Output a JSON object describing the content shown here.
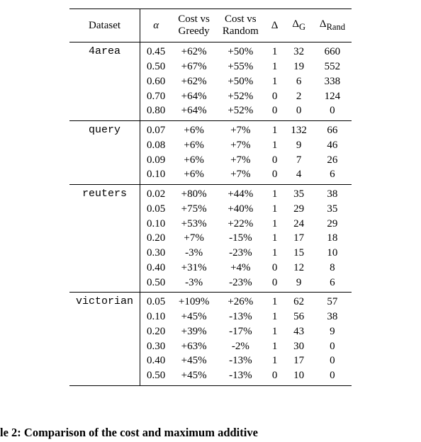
{
  "table": {
    "background_color": "#ffffff",
    "text_color": "#000000",
    "border_color": "#000000",
    "font_family_body": "Times New Roman",
    "font_family_dataset": "Courier New",
    "font_size_body": 15,
    "headers": {
      "dataset": "Dataset",
      "alpha": "α",
      "cost_greedy_line1": "Cost vs",
      "cost_greedy_line2": "Greedy",
      "cost_random_line1": "Cost vs",
      "cost_random_line2": "Random",
      "delta": "Δ",
      "delta_g": "Δ",
      "delta_g_sub": "G",
      "delta_rand": "Δ",
      "delta_rand_sub": "Rand"
    },
    "groups": [
      {
        "name": "4area",
        "rows": [
          {
            "alpha": "0.45",
            "cvg": "+62%",
            "cvr": "+50%",
            "d": "1",
            "dg": "32",
            "dr": "660"
          },
          {
            "alpha": "0.50",
            "cvg": "+67%",
            "cvr": "+55%",
            "d": "1",
            "dg": "19",
            "dr": "552"
          },
          {
            "alpha": "0.60",
            "cvg": "+62%",
            "cvr": "+50%",
            "d": "1",
            "dg": "6",
            "dr": "338"
          },
          {
            "alpha": "0.70",
            "cvg": "+64%",
            "cvr": "+52%",
            "d": "0",
            "dg": "2",
            "dr": "124"
          },
          {
            "alpha": "0.80",
            "cvg": "+64%",
            "cvr": "+52%",
            "d": "0",
            "dg": "0",
            "dr": "0"
          }
        ]
      },
      {
        "name": "query",
        "rows": [
          {
            "alpha": "0.07",
            "cvg": "+6%",
            "cvr": "+7%",
            "d": "1",
            "dg": "132",
            "dr": "66"
          },
          {
            "alpha": "0.08",
            "cvg": "+6%",
            "cvr": "+7%",
            "d": "1",
            "dg": "9",
            "dr": "46"
          },
          {
            "alpha": "0.09",
            "cvg": "+6%",
            "cvr": "+7%",
            "d": "0",
            "dg": "7",
            "dr": "26"
          },
          {
            "alpha": "0.10",
            "cvg": "+6%",
            "cvr": "+7%",
            "d": "0",
            "dg": "4",
            "dr": "6"
          }
        ]
      },
      {
        "name": "reuters",
        "rows": [
          {
            "alpha": "0.02",
            "cvg": "+80%",
            "cvr": "+44%",
            "d": "1",
            "dg": "35",
            "dr": "38"
          },
          {
            "alpha": "0.05",
            "cvg": "+75%",
            "cvr": "+40%",
            "d": "1",
            "dg": "29",
            "dr": "35"
          },
          {
            "alpha": "0.10",
            "cvg": "+53%",
            "cvr": "+22%",
            "d": "1",
            "dg": "24",
            "dr": "29"
          },
          {
            "alpha": "0.20",
            "cvg": "+7%",
            "cvr": "-15%",
            "d": "1",
            "dg": "17",
            "dr": "18"
          },
          {
            "alpha": "0.30",
            "cvg": "-3%",
            "cvr": "-23%",
            "d": "1",
            "dg": "15",
            "dr": "10"
          },
          {
            "alpha": "0.40",
            "cvg": "+31%",
            "cvr": "+4%",
            "d": "0",
            "dg": "12",
            "dr": "8"
          },
          {
            "alpha": "0.50",
            "cvg": "-3%",
            "cvr": "-23%",
            "d": "0",
            "dg": "9",
            "dr": "6"
          }
        ]
      },
      {
        "name": "victorian",
        "rows": [
          {
            "alpha": "0.05",
            "cvg": "+109%",
            "cvr": "+26%",
            "d": "1",
            "dg": "62",
            "dr": "57"
          },
          {
            "alpha": "0.10",
            "cvg": "+45%",
            "cvr": "-13%",
            "d": "1",
            "dg": "56",
            "dr": "38"
          },
          {
            "alpha": "0.20",
            "cvg": "+39%",
            "cvr": "-17%",
            "d": "1",
            "dg": "43",
            "dr": "9"
          },
          {
            "alpha": "0.30",
            "cvg": "+63%",
            "cvr": "-2%",
            "d": "1",
            "dg": "30",
            "dr": "0"
          },
          {
            "alpha": "0.40",
            "cvg": "+45%",
            "cvr": "-13%",
            "d": "1",
            "dg": "17",
            "dr": "0"
          },
          {
            "alpha": "0.50",
            "cvg": "+45%",
            "cvr": "-13%",
            "d": "0",
            "dg": "10",
            "dr": "0"
          }
        ]
      }
    ]
  },
  "caption": {
    "text": "le 2: Comparison of the cost and maximum additive",
    "font_size": 16.5,
    "font_weight": "bold"
  }
}
